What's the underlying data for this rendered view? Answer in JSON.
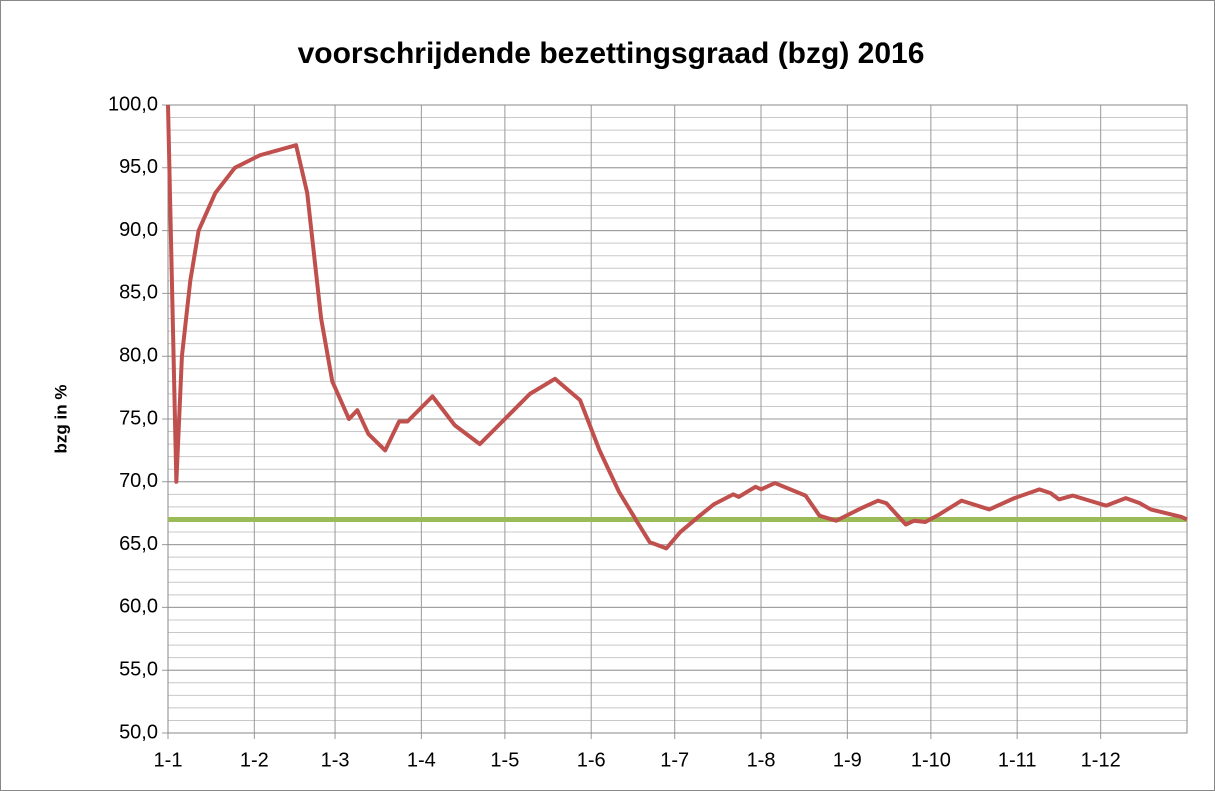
{
  "chart_data": {
    "type": "line",
    "title": "voorschrijdende bezettingsgraad (bzg) 2016",
    "y_label": "bzg in %",
    "x": [
      0,
      3,
      5,
      8,
      11,
      17,
      24,
      33,
      46,
      50,
      55,
      59,
      65,
      68,
      72,
      78,
      83,
      86,
      95,
      103,
      112,
      121,
      130,
      139,
      148,
      155,
      162,
      168,
      173,
      179,
      184,
      191,
      196,
      203,
      205,
      211,
      213,
      218,
      229,
      234,
      240,
      249,
      255,
      258,
      265,
      268,
      272,
      277,
      285,
      295,
      304,
      313,
      317,
      320,
      325,
      337,
      344,
      349,
      353,
      364,
      366
    ],
    "series": [
      {
        "name": "bzg",
        "color": "#c0504d",
        "values": [
          100,
          70,
          80,
          86,
          90,
          93,
          95,
          96,
          96.8,
          93,
          83,
          78,
          75,
          75.7,
          73.8,
          72.5,
          74.8,
          74.8,
          76.8,
          74.5,
          73,
          75,
          77,
          78.2,
          76.5,
          72.5,
          69.2,
          67,
          65.2,
          64.7,
          66,
          67.3,
          68.2,
          69,
          68.8,
          69.6,
          69.4,
          69.9,
          68.9,
          67.3,
          66.9,
          67.9,
          68.5,
          68.3,
          66.6,
          66.9,
          66.8,
          67.4,
          68.5,
          67.8,
          68.7,
          69.4,
          69.1,
          68.6,
          68.9,
          68.1,
          68.7,
          68.3,
          67.8,
          67.2,
          67
        ]
      }
    ],
    "reference_line": {
      "value": 67,
      "color": "#9bbb59"
    },
    "xlim": [
      0,
      366
    ],
    "xticks": [
      {
        "value": 0,
        "label": "1-1"
      },
      {
        "value": 31,
        "label": "1-2"
      },
      {
        "value": 60,
        "label": "1-3"
      },
      {
        "value": 91,
        "label": "1-4"
      },
      {
        "value": 121,
        "label": "1-5"
      },
      {
        "value": 152,
        "label": "1-6"
      },
      {
        "value": 182,
        "label": "1-7"
      },
      {
        "value": 213,
        "label": "1-8"
      },
      {
        "value": 244,
        "label": "1-9"
      },
      {
        "value": 274,
        "label": "1-10"
      },
      {
        "value": 305,
        "label": "1-11"
      },
      {
        "value": 335,
        "label": "1-12"
      }
    ],
    "ylim": [
      50,
      100
    ],
    "yticks": [
      {
        "value": 50,
        "label": "50,0"
      },
      {
        "value": 55,
        "label": "55,0"
      },
      {
        "value": 60,
        "label": "60,0"
      },
      {
        "value": 65,
        "label": "65,0"
      },
      {
        "value": 70,
        "label": "70,0"
      },
      {
        "value": 75,
        "label": "75,0"
      },
      {
        "value": 80,
        "label": "80,0"
      },
      {
        "value": 85,
        "label": "85,0"
      },
      {
        "value": 90,
        "label": "90,0"
      },
      {
        "value": 95,
        "label": "95,0"
      },
      {
        "value": 100,
        "label": "100,0"
      }
    ],
    "y_minor_step": 1,
    "grid": true
  }
}
